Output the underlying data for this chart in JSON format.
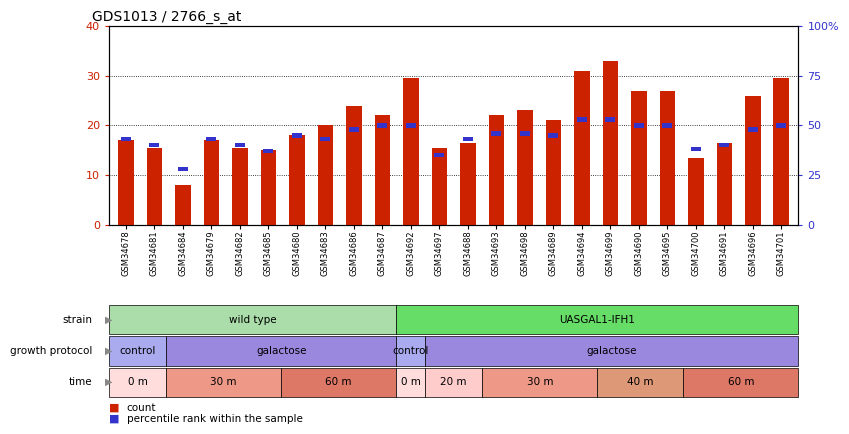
{
  "title": "GDS1013 / 2766_s_at",
  "samples": [
    "GSM34678",
    "GSM34681",
    "GSM34684",
    "GSM34679",
    "GSM34682",
    "GSM34685",
    "GSM34680",
    "GSM34683",
    "GSM34686",
    "GSM34687",
    "GSM34692",
    "GSM34697",
    "GSM34688",
    "GSM34693",
    "GSM34698",
    "GSM34689",
    "GSM34694",
    "GSM34699",
    "GSM34690",
    "GSM34695",
    "GSM34700",
    "GSM34691",
    "GSM34696",
    "GSM34701"
  ],
  "count": [
    17,
    15.5,
    8,
    17,
    15.5,
    15,
    18,
    20,
    24,
    22,
    29.5,
    15.5,
    16.5,
    22,
    23,
    21,
    31,
    33,
    27,
    27,
    13.5,
    16.5,
    26,
    29.5
  ],
  "percentile": [
    43,
    40,
    28,
    43,
    40,
    37,
    45,
    43,
    48,
    50,
    50,
    35,
    43,
    46,
    46,
    45,
    53,
    53,
    50,
    50,
    38,
    40,
    48,
    50
  ],
  "ylim_left": [
    0,
    40
  ],
  "ylim_right": [
    0,
    100
  ],
  "yticks_left": [
    0,
    10,
    20,
    30,
    40
  ],
  "yticks_right": [
    0,
    25,
    50,
    75,
    100
  ],
  "bar_color": "#cc2200",
  "percentile_color": "#3333cc",
  "bg_color": "#ffffff",
  "strain_groups": [
    {
      "label": "wild type",
      "start": 0,
      "end": 10,
      "color": "#aaddaa"
    },
    {
      "label": "UASGAL1-IFH1",
      "start": 10,
      "end": 24,
      "color": "#66dd66"
    }
  ],
  "protocol_groups": [
    {
      "label": "control",
      "start": 0,
      "end": 2,
      "color": "#aaaaee"
    },
    {
      "label": "galactose",
      "start": 2,
      "end": 10,
      "color": "#9988dd"
    },
    {
      "label": "control",
      "start": 10,
      "end": 11,
      "color": "#aaaaee"
    },
    {
      "label": "galactose",
      "start": 11,
      "end": 24,
      "color": "#9988dd"
    }
  ],
  "time_groups": [
    {
      "label": "0 m",
      "start": 0,
      "end": 2,
      "color": "#ffdddd"
    },
    {
      "label": "30 m",
      "start": 2,
      "end": 6,
      "color": "#ee9988"
    },
    {
      "label": "60 m",
      "start": 6,
      "end": 10,
      "color": "#dd7766"
    },
    {
      "label": "0 m",
      "start": 10,
      "end": 11,
      "color": "#ffdddd"
    },
    {
      "label": "20 m",
      "start": 11,
      "end": 13,
      "color": "#ffcccc"
    },
    {
      "label": "30 m",
      "start": 13,
      "end": 17,
      "color": "#ee9988"
    },
    {
      "label": "40 m",
      "start": 17,
      "end": 20,
      "color": "#dd9977"
    },
    {
      "label": "60 m",
      "start": 20,
      "end": 24,
      "color": "#dd7766"
    }
  ]
}
